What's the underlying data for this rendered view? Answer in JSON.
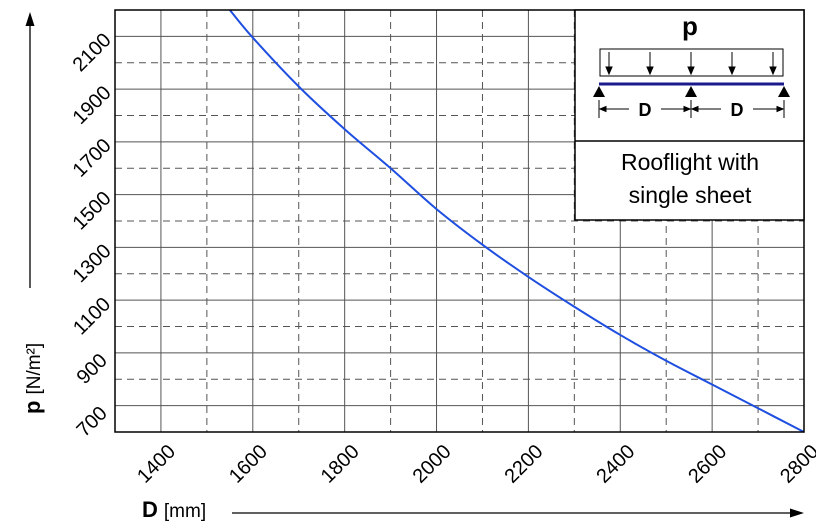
{
  "chart_data": {
    "type": "line",
    "x_label_symbol": "D",
    "x_label_unit": "[mm]",
    "y_label_symbol": "p",
    "y_label_unit": "[N/m²]",
    "xlim": [
      1300,
      2800
    ],
    "ylim": [
      600,
      2200
    ],
    "x_ticks": [
      1400,
      1600,
      1800,
      2000,
      2200,
      2400,
      2600,
      2800
    ],
    "y_ticks": [
      700,
      900,
      1100,
      1300,
      1500,
      1700,
      1900,
      2100
    ],
    "x_grid_solid": [
      1400,
      1600,
      1800,
      2000,
      2200,
      2400,
      2600
    ],
    "x_grid_dashed": [
      1500,
      1700,
      1900,
      2100,
      2300,
      2500,
      2700
    ],
    "y_grid_solid": [
      700,
      900,
      1100,
      1300,
      1500,
      1700,
      1900,
      2100
    ],
    "y_grid_dashed": [
      800,
      1000,
      1200,
      1400,
      1600,
      1800,
      2000
    ],
    "grid": true,
    "series": [
      {
        "color": "#1f4fe0",
        "x": [
          1550,
          1600,
          1700,
          1800,
          1900,
          2000,
          2100,
          2200,
          2300,
          2400,
          2500,
          2600,
          2700,
          2800
        ],
        "y": [
          2200,
          2095,
          1910,
          1748,
          1600,
          1445,
          1310,
          1188,
          1075,
          968,
          870,
          780,
          690,
          600
        ]
      }
    ],
    "legend": {
      "diagram_load_label": "p",
      "diagram_span_label_1": "D",
      "diagram_span_label_2": "D",
      "caption_line_1": "Rooflight with",
      "caption_line_2": "single sheet",
      "placement": "top-right"
    }
  }
}
